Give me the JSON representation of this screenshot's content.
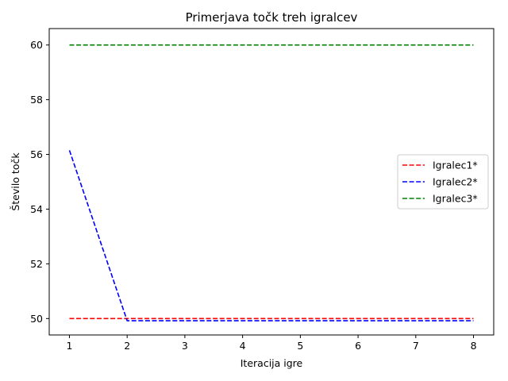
{
  "chart_data": {
    "type": "line",
    "title": "Primerjava točk treh igralcev",
    "xlabel": "Iteracija igre",
    "ylabel": "Število točk",
    "x": [
      1,
      2,
      3,
      4,
      5,
      6,
      7,
      8
    ],
    "xticks": [
      "1",
      "2",
      "3",
      "4",
      "5",
      "6",
      "7",
      "8"
    ],
    "yticks": [
      "50",
      "52",
      "54",
      "56",
      "58",
      "60"
    ],
    "xlim": [
      0.65,
      8.35
    ],
    "ylim": [
      49.4,
      60.6
    ],
    "grid": false,
    "legend_position": "center-right",
    "line_style": "dashed",
    "series": [
      {
        "name": "Igralec1*",
        "color": "#ff0000",
        "values": [
          50,
          50,
          50,
          50,
          50,
          50,
          50,
          50
        ]
      },
      {
        "name": "Igralec2*",
        "color": "#0000ff",
        "values": [
          56.15,
          49.92,
          49.92,
          49.92,
          49.92,
          49.92,
          49.92,
          49.92
        ]
      },
      {
        "name": "Igralec3*",
        "color": "#008000",
        "values": [
          60,
          60,
          60,
          60,
          60,
          60,
          60,
          60
        ]
      }
    ]
  }
}
